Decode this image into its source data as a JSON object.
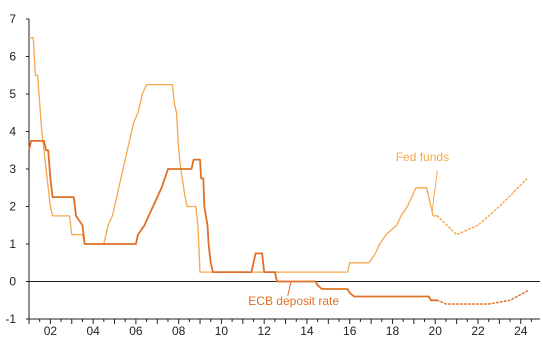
{
  "chart_data": {
    "type": "line",
    "title": "",
    "xlabel": "",
    "ylabel": "",
    "xlim": [
      2001,
      2024.9
    ],
    "ylim": [
      -1,
      7
    ],
    "x_ticks": [
      2002,
      2004,
      2006,
      2008,
      2010,
      2012,
      2014,
      2016,
      2018,
      2020,
      2022,
      2024
    ],
    "x_tick_labels": [
      "02",
      "04",
      "06",
      "08",
      "10",
      "12",
      "14",
      "16",
      "18",
      "20",
      "22",
      "24"
    ],
    "y_ticks": [
      -1,
      0,
      1,
      2,
      3,
      4,
      5,
      6,
      7
    ],
    "y_tick_labels": [
      "-1",
      "0",
      "1",
      "2",
      "3",
      "4",
      "5",
      "6",
      "7"
    ],
    "grid": false,
    "zero_line": true,
    "annotations": {
      "fed": "Fed funds",
      "ecb": "ECB deposit rate"
    },
    "series": [
      {
        "key": "fed",
        "color": "#f5a84e",
        "points": [
          [
            2001.0,
            6.5
          ],
          [
            2001.2,
            6.5
          ],
          [
            2001.3,
            5.5
          ],
          [
            2001.4,
            5.5
          ],
          [
            2001.5,
            4.75
          ],
          [
            2001.6,
            4.0
          ],
          [
            2001.7,
            3.5
          ],
          [
            2001.8,
            3.0
          ],
          [
            2001.9,
            2.5
          ],
          [
            2002.0,
            2.0
          ],
          [
            2002.1,
            1.75
          ],
          [
            2002.9,
            1.75
          ],
          [
            2003.0,
            1.25
          ],
          [
            2003.5,
            1.25
          ],
          [
            2003.6,
            1.0
          ],
          [
            2004.5,
            1.0
          ],
          [
            2004.6,
            1.25
          ],
          [
            2004.7,
            1.5
          ],
          [
            2004.9,
            1.75
          ],
          [
            2005.1,
            2.25
          ],
          [
            2005.3,
            2.75
          ],
          [
            2005.5,
            3.25
          ],
          [
            2005.7,
            3.75
          ],
          [
            2005.9,
            4.25
          ],
          [
            2006.1,
            4.5
          ],
          [
            2006.3,
            5.0
          ],
          [
            2006.5,
            5.25
          ],
          [
            2007.7,
            5.25
          ],
          [
            2007.8,
            4.75
          ],
          [
            2007.9,
            4.5
          ],
          [
            2008.0,
            3.5
          ],
          [
            2008.1,
            3.0
          ],
          [
            2008.3,
            2.25
          ],
          [
            2008.4,
            2.0
          ],
          [
            2008.8,
            2.0
          ],
          [
            2008.9,
            1.5
          ],
          [
            2009.0,
            0.25
          ],
          [
            2015.9,
            0.25
          ],
          [
            2016.0,
            0.5
          ],
          [
            2016.9,
            0.5
          ],
          [
            2017.2,
            0.75
          ],
          [
            2017.4,
            1.0
          ],
          [
            2017.7,
            1.25
          ],
          [
            2018.2,
            1.5
          ],
          [
            2018.4,
            1.75
          ],
          [
            2018.7,
            2.0
          ],
          [
            2018.9,
            2.25
          ],
          [
            2019.1,
            2.5
          ],
          [
            2019.6,
            2.5
          ],
          [
            2019.7,
            2.25
          ],
          [
            2019.8,
            2.0
          ],
          [
            2019.9,
            1.75
          ],
          [
            2020.1,
            1.75
          ]
        ],
        "forecast": [
          [
            2020.1,
            1.75
          ],
          [
            2021.0,
            1.25
          ],
          [
            2022.0,
            1.5
          ],
          [
            2023.0,
            2.0
          ],
          [
            2024.3,
            2.75
          ]
        ]
      },
      {
        "key": "ecb",
        "color": "#e07028",
        "points": [
          [
            2001.0,
            3.5
          ],
          [
            2001.1,
            3.75
          ],
          [
            2001.7,
            3.75
          ],
          [
            2001.8,
            3.5
          ],
          [
            2001.9,
            3.5
          ],
          [
            2002.0,
            2.75
          ],
          [
            2002.1,
            2.25
          ],
          [
            2003.1,
            2.25
          ],
          [
            2003.2,
            1.75
          ],
          [
            2003.5,
            1.5
          ],
          [
            2003.6,
            1.0
          ],
          [
            2006.0,
            1.0
          ],
          [
            2006.1,
            1.25
          ],
          [
            2006.4,
            1.5
          ],
          [
            2006.6,
            1.75
          ],
          [
            2006.8,
            2.0
          ],
          [
            2007.0,
            2.25
          ],
          [
            2007.2,
            2.5
          ],
          [
            2007.5,
            3.0
          ],
          [
            2008.6,
            3.0
          ],
          [
            2008.7,
            3.25
          ],
          [
            2009.0,
            3.25
          ],
          [
            2009.05,
            2.75
          ],
          [
            2009.15,
            2.75
          ],
          [
            2009.2,
            2.0
          ],
          [
            2009.35,
            1.5
          ],
          [
            2009.4,
            1.0
          ],
          [
            2009.5,
            0.5
          ],
          [
            2009.6,
            0.25
          ],
          [
            2011.4,
            0.25
          ],
          [
            2011.5,
            0.5
          ],
          [
            2011.6,
            0.75
          ],
          [
            2011.9,
            0.75
          ],
          [
            2012.0,
            0.25
          ],
          [
            2012.5,
            0.25
          ],
          [
            2012.6,
            0.0
          ],
          [
            2014.4,
            0.0
          ],
          [
            2014.5,
            -0.1
          ],
          [
            2014.7,
            -0.2
          ],
          [
            2015.9,
            -0.2
          ],
          [
            2016.0,
            -0.3
          ],
          [
            2016.2,
            -0.4
          ],
          [
            2019.7,
            -0.4
          ],
          [
            2019.8,
            -0.5
          ],
          [
            2020.1,
            -0.5
          ]
        ],
        "forecast": [
          [
            2020.1,
            -0.5
          ],
          [
            2020.5,
            -0.6
          ],
          [
            2022.5,
            -0.6
          ],
          [
            2023.5,
            -0.5
          ],
          [
            2024.3,
            -0.25
          ]
        ]
      }
    ]
  }
}
